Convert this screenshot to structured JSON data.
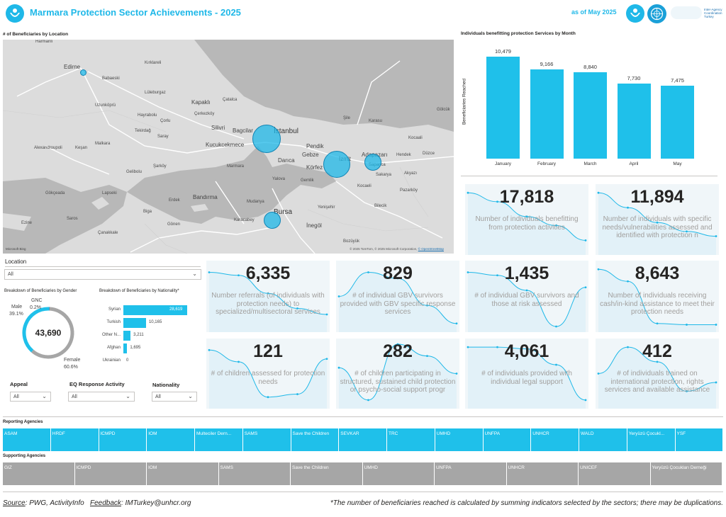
{
  "header": {
    "title": "Marmara Protection Sector Achievements - 2025",
    "as_of": "as of May 2025",
    "coordination_text": "Inter-Agency Coordination Turkey"
  },
  "colors": {
    "accent": "#1fb8e8",
    "bar": "#1fc0ea",
    "support_grey": "#a6a6a6",
    "panel_bg": "#f0f6f9"
  },
  "map": {
    "title": "# of Beneficiaries by Location",
    "attribution": "© 2025 TomTom, © 2025 Microsoft Corporation, ",
    "attribution_link": "© OpenStreetMap",
    "ms_logo": "Microsoft Bing",
    "places": {
      "harmanli": "Harmanli",
      "edirne": "Edirne",
      "kapakli": "Kapaklı",
      "cerkezkoy": "Çerkezköy",
      "silivri": "Silivri",
      "bagcilar": "Bagcilar",
      "istanbul": "İstanbul",
      "kucukcekmece": "Kucukcekmece",
      "pendik": "Pendik",
      "gebze": "Gebze",
      "darica": "Darıca",
      "izmit": "İzmit",
      "adapazari": "Adapazarı",
      "korfez": "Körfez",
      "bursa": "Bursa",
      "bandirma": "Bandırma",
      "inegol": "İnegöl",
      "tekirdag": "Tekirdağ",
      "corlu": "Çorlu",
      "luleburgaz": "Lüleburgaz",
      "babaeski": "Babaeski",
      "kirklareli": "Kırklareli",
      "malkara": "Malkara",
      "kesan": "Keşan",
      "gelibolu": "Gelibolu",
      "canakkale": "Çanakkale",
      "biga": "Biga",
      "gonen": "Gönen",
      "karacabey": "Karacabey",
      "mudanya": "Mudanya",
      "gemlik": "Gemlik",
      "yalova": "Yalova",
      "sapanca": "Sapanca",
      "karasu": "Karasu",
      "kocaali": "Kocaali",
      "hendek": "Hendek",
      "duzce": "Düzce",
      "bilecik": "Bilecik",
      "bozuyuk": "Bozüyük",
      "yenisehir": "Yenişehir",
      "erdek": "Erdek",
      "marmara": "Marmara",
      "sarkoy": "Şarköy",
      "alexandroupoli": "Alexandroupoli",
      "uzunkopru": "Uzunköprü",
      "hayrabolu": "Hayrabolu",
      "saray": "Saray",
      "catalca": "Çatalca",
      "sile": "Şile",
      "golcuk": "Gölcük",
      "pazarkoy": "Pazarköy",
      "gokceada": "Gökçeada",
      "lapseki": "Lapseki",
      "sarkoy2": "Saros",
      "ezine": "Ezine",
      "kocaeli": "Kocaeli",
      "sakarya": "Sakarya",
      "akyazi": "Akyazı"
    }
  },
  "monthly_chart": {
    "title": "Individuals benefitting protection Services by Month",
    "ylabel": "Beneficiaries Reached"
  },
  "chart_data": {
    "type": "bar",
    "categories": [
      "January",
      "February",
      "March",
      "April",
      "May"
    ],
    "values": [
      10479,
      9166,
      8840,
      7730,
      7475
    ],
    "value_labels": [
      "10,479",
      "9,166",
      "8,840",
      "7,730",
      "7,475"
    ],
    "title": "Individuals benefitting protection Services by Month",
    "xlabel": "",
    "ylabel": "Beneficiaries Reached",
    "ylim": [
      0,
      11500
    ]
  },
  "kpis": [
    {
      "value": "17,818",
      "label": "Number of individuals benefitting from protection activities",
      "trend": [
        0.05,
        0.2,
        0.45,
        0.6,
        0.85
      ]
    },
    {
      "value": "11,894",
      "label": "Number of individuals with specific needs/vulnerabilities assessed and identified with protection n",
      "trend": [
        0.05,
        0.3,
        0.55,
        0.7,
        0.78
      ]
    },
    {
      "value": "6,335",
      "label": "Number referrals (of individuals with protection needs) to specialized/multisectoral services",
      "trend": [
        0.1,
        0.15,
        0.45,
        0.7,
        0.8
      ]
    },
    {
      "value": "829",
      "label": "# of individual GBV survivors provided with GBV specific response services",
      "trend": [
        0.5,
        0.1,
        0.2,
        0.65,
        0.95
      ]
    },
    {
      "value": "1,435",
      "label": "# of individual GBV survivors and those at risk assessed",
      "trend": [
        0.1,
        0.15,
        0.4,
        1.0,
        0.35
      ]
    },
    {
      "value": "8,643",
      "label": "Number of individuals receiving cash/in-kind assistance to meet their protection needs",
      "trend": [
        0.05,
        0.25,
        0.95,
        0.97,
        0.97
      ]
    },
    {
      "value": "121",
      "label": "# of children assessed for protection needs",
      "trend": [
        0.1,
        0.3,
        0.9,
        0.85,
        0.25
      ]
    },
    {
      "value": "282",
      "label": "# of children participating in structured, sustained child protection or psycho-social support progr",
      "trend": [
        0.4,
        0.95,
        0.0,
        0.2,
        0.5
      ]
    },
    {
      "value": "4,061",
      "label": "# of individuals provided with individual legal support",
      "trend": [
        0.05,
        0.05,
        0.08,
        0.35,
        0.95
      ]
    },
    {
      "value": "412",
      "label": "# of individuals trained on international protection, rights services and available assistance",
      "trend": [
        0.5,
        0.05,
        0.3,
        0.8,
        0.65
      ]
    }
  ],
  "location_filter": {
    "label": "Location",
    "value": "All"
  },
  "gender": {
    "title": "Breakdown of Beneficiaries by Gender",
    "total": "43,690",
    "male_label": "Male",
    "male_pct": "39.1%",
    "male_value": 39.1,
    "gnc_label": "GNC",
    "gnc_pct": "0.2%",
    "gnc_value": 0.2,
    "female_label": "Female",
    "female_pct": "60.6%",
    "female_value": 60.6
  },
  "nationality": {
    "title": "Breakdown of Beneficiaries by Nationality*",
    "categories": [
      "Syrian",
      "Turkish",
      "Other N...",
      "Afghan",
      "Ukrainian"
    ],
    "values": [
      28619,
      10165,
      3211,
      1695,
      0
    ],
    "value_labels": [
      "28,619",
      "10,165",
      "3,211",
      "1,695",
      "0"
    ]
  },
  "filters": {
    "appeal": {
      "label": "Appeal",
      "value": "All"
    },
    "eq": {
      "label": "EQ Response Activity",
      "value": "All"
    },
    "nationality": {
      "label": "Nationality",
      "value": "All"
    }
  },
  "reporting": {
    "title": "Reporting Agencies",
    "items": [
      "ASAM",
      "HRDF",
      "ICMPD",
      "IOM",
      "Multeciler Dern...",
      "SAMS",
      "Save the Children",
      "SEVKAR",
      "TRC",
      "UMHD",
      "UNFPA",
      "UNHCR",
      "WALD",
      "Yeryüzü Çocukl...",
      "YSF"
    ]
  },
  "supporting": {
    "title": "Supporting Agencies",
    "items": [
      "GIZ",
      "ICMPD",
      "IOM",
      "SAMS",
      "Save the Children",
      "UMHD",
      "UNFPA",
      "UNHCR",
      "UNICEF",
      "Yeryüzü Çocukları Derneği"
    ]
  },
  "footer": {
    "source_label": "Source",
    "source_text": ": PWG, ActivityInfo",
    "feedback_label": "Feedback",
    "feedback_text": ": IMTurkey@unhcr.org",
    "note": "*The number of beneficiaries reached is calculated by summing indicators selected by the sectors; there may be duplications."
  }
}
